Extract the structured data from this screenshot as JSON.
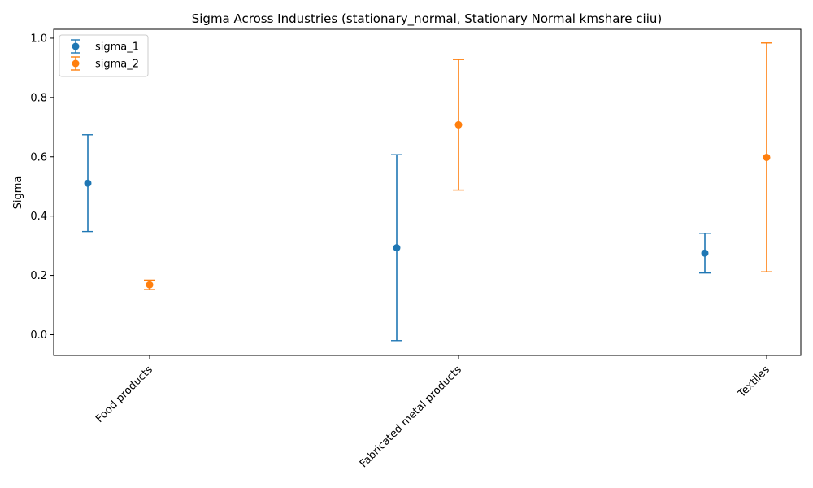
{
  "chart_data": {
    "type": "scatter",
    "title": "Sigma Across Industries (stationary_normal, Stationary Normal kmshare ciiu)",
    "xlabel": "",
    "ylabel": "Sigma",
    "categories": [
      "Food products",
      "Fabricated metal products",
      "Textiles"
    ],
    "ylim": [
      -0.07,
      1.03
    ],
    "yticks": [
      "0.0",
      "0.2",
      "0.4",
      "0.6",
      "0.8",
      "1.0"
    ],
    "grid": false,
    "legend_position": "top-left",
    "series": [
      {
        "name": "sigma_1",
        "color": "#1f77b4",
        "values": [
          0.511,
          0.293,
          0.275
        ],
        "lower": [
          0.348,
          -0.02,
          0.208
        ],
        "upper": [
          0.674,
          0.607,
          0.342
        ]
      },
      {
        "name": "sigma_2",
        "color": "#ff7f0e",
        "values": [
          0.168,
          0.708,
          0.598
        ],
        "lower": [
          0.152,
          0.488,
          0.212
        ],
        "upper": [
          0.184,
          0.928,
          0.984
        ]
      }
    ]
  }
}
